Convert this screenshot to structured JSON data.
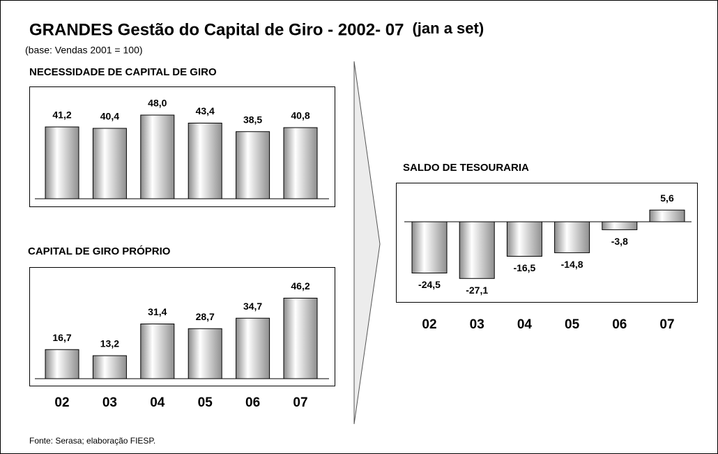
{
  "title": "GRANDES Gestão do Capital de Giro - 2002- 07",
  "title_note": "(jan a set)",
  "subtitle": "(base: Vendas 2001 = 100)",
  "source": "Fonte: Serasa; elaboração FIESP.",
  "chart_data": [
    {
      "type": "bar",
      "title": "NECESSIDADE DE CAPITAL DE GIRO",
      "categories": [
        null,
        null,
        null,
        null,
        null,
        null
      ],
      "values": [
        41.2,
        40.4,
        48.0,
        43.4,
        38.5,
        40.8
      ],
      "value_labels": [
        "41,2",
        "40,4",
        "48,0",
        "43,4",
        "38,5",
        "40,8"
      ]
    },
    {
      "type": "bar",
      "title": "CAPITAL DE GIRO PRÓPRIO",
      "categories": [
        "02",
        "03",
        "04",
        "05",
        "06",
        "07"
      ],
      "values": [
        16.7,
        13.2,
        31.4,
        28.7,
        34.7,
        46.2
      ],
      "value_labels": [
        "16,7",
        "13,2",
        "31,4",
        "28,7",
        "34,7",
        "46,2"
      ]
    },
    {
      "type": "bar",
      "title": "SALDO DE TESOURARIA",
      "categories": [
        "02",
        "03",
        "04",
        "05",
        "06",
        "07"
      ],
      "values": [
        -24.5,
        -27.1,
        -16.5,
        -14.8,
        -3.8,
        5.6
      ],
      "value_labels": [
        "-24,5",
        "-27,1",
        "-16,5",
        "-14,8",
        "-3,8",
        "5,6"
      ]
    }
  ]
}
